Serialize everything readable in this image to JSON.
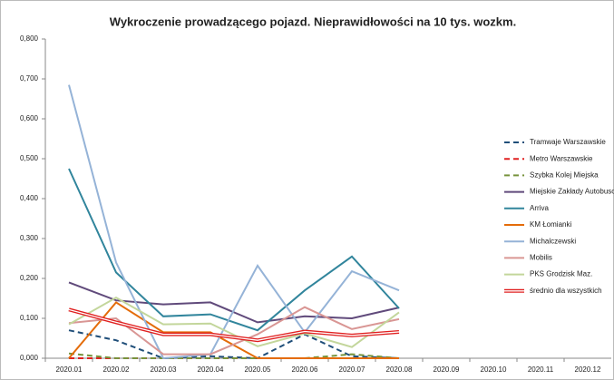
{
  "chart_data": {
    "type": "line",
    "title": "Wykroczenie prowadzącego pojazd. Nieprawidłowości na 10 tys. wozkm.",
    "categories": [
      "2020.01",
      "2020.02",
      "2020.03",
      "2020.04",
      "2020.05",
      "2020.06",
      "2020.07",
      "2020.08",
      "2020.09",
      "2020.10",
      "2020.11",
      "2020.12"
    ],
    "ylim": [
      0,
      0.8
    ],
    "yticks": [
      {
        "value": 0,
        "label": "0,000"
      },
      {
        "value": 0.1,
        "label": "0,100"
      },
      {
        "value": 0.2,
        "label": "0,200"
      },
      {
        "value": 0.3,
        "label": "0,300"
      },
      {
        "value": 0.4,
        "label": "0,400"
      },
      {
        "value": 0.5,
        "label": "0,500"
      },
      {
        "value": 0.6,
        "label": "0,600"
      },
      {
        "value": 0.7,
        "label": "0,700"
      },
      {
        "value": 0.8,
        "label": "0,800"
      }
    ],
    "grid": false,
    "legend": "right",
    "series": [
      {
        "name": "Tramwaje Warszawskie",
        "color": "#1f4e79",
        "style": "dashed",
        "values": [
          0.07,
          0.045,
          0,
          0.005,
          0,
          0.06,
          0.005,
          0,
          null,
          null,
          null,
          null
        ]
      },
      {
        "name": "Metro Warszawskie",
        "color": "#e02020",
        "style": "dashed",
        "values": [
          0,
          0,
          0,
          0,
          0,
          0,
          0,
          0,
          null,
          null,
          null,
          null
        ]
      },
      {
        "name": "Szybka Kolej Miejska",
        "color": "#77933c",
        "style": "dashed",
        "values": [
          0.012,
          0,
          0,
          0,
          0,
          0,
          0.01,
          0,
          null,
          null,
          null,
          null
        ]
      },
      {
        "name": "Miejskie Zakłady Autobusowe",
        "color": "#604a7b",
        "style": "solid",
        "values": [
          0.19,
          0.145,
          0.135,
          0.14,
          0.09,
          0.105,
          0.1,
          0.127,
          null,
          null,
          null,
          null
        ]
      },
      {
        "name": "Arriva",
        "color": "#31859c",
        "style": "solid",
        "values": [
          0.475,
          0.215,
          0.105,
          0.11,
          0.07,
          0.17,
          0.255,
          0.125,
          null,
          null,
          null,
          null
        ]
      },
      {
        "name": "KM Łomianki",
        "color": "#e46c0a",
        "style": "solid",
        "values": [
          0,
          0.14,
          0.065,
          0.065,
          0,
          0,
          0,
          0,
          null,
          null,
          null,
          null
        ]
      },
      {
        "name": "Michalczewski",
        "color": "#95b3d7",
        "style": "solid",
        "values": [
          0.685,
          0.24,
          0,
          0.01,
          0.232,
          0.065,
          0.218,
          0.17,
          null,
          null,
          null,
          null
        ]
      },
      {
        "name": "Mobilis",
        "color": "#d99694",
        "style": "solid",
        "values": [
          0.088,
          0.1,
          0.01,
          0.01,
          0.06,
          0.128,
          0.073,
          0.098,
          null,
          null,
          null,
          null
        ]
      },
      {
        "name": "PKS Grodzisk Maz.",
        "color": "#c3d69b",
        "style": "solid",
        "values": [
          0.085,
          0.152,
          0.085,
          0.087,
          0.03,
          0.062,
          0.028,
          0.115,
          null,
          null,
          null,
          null
        ]
      },
      {
        "name": "średnio dla wszystkich",
        "color": "#e02020",
        "style": "double",
        "values": [
          0.122,
          0.09,
          0.06,
          0.06,
          0.045,
          0.067,
          0.057,
          0.066,
          null,
          null,
          null,
          null
        ]
      }
    ]
  }
}
